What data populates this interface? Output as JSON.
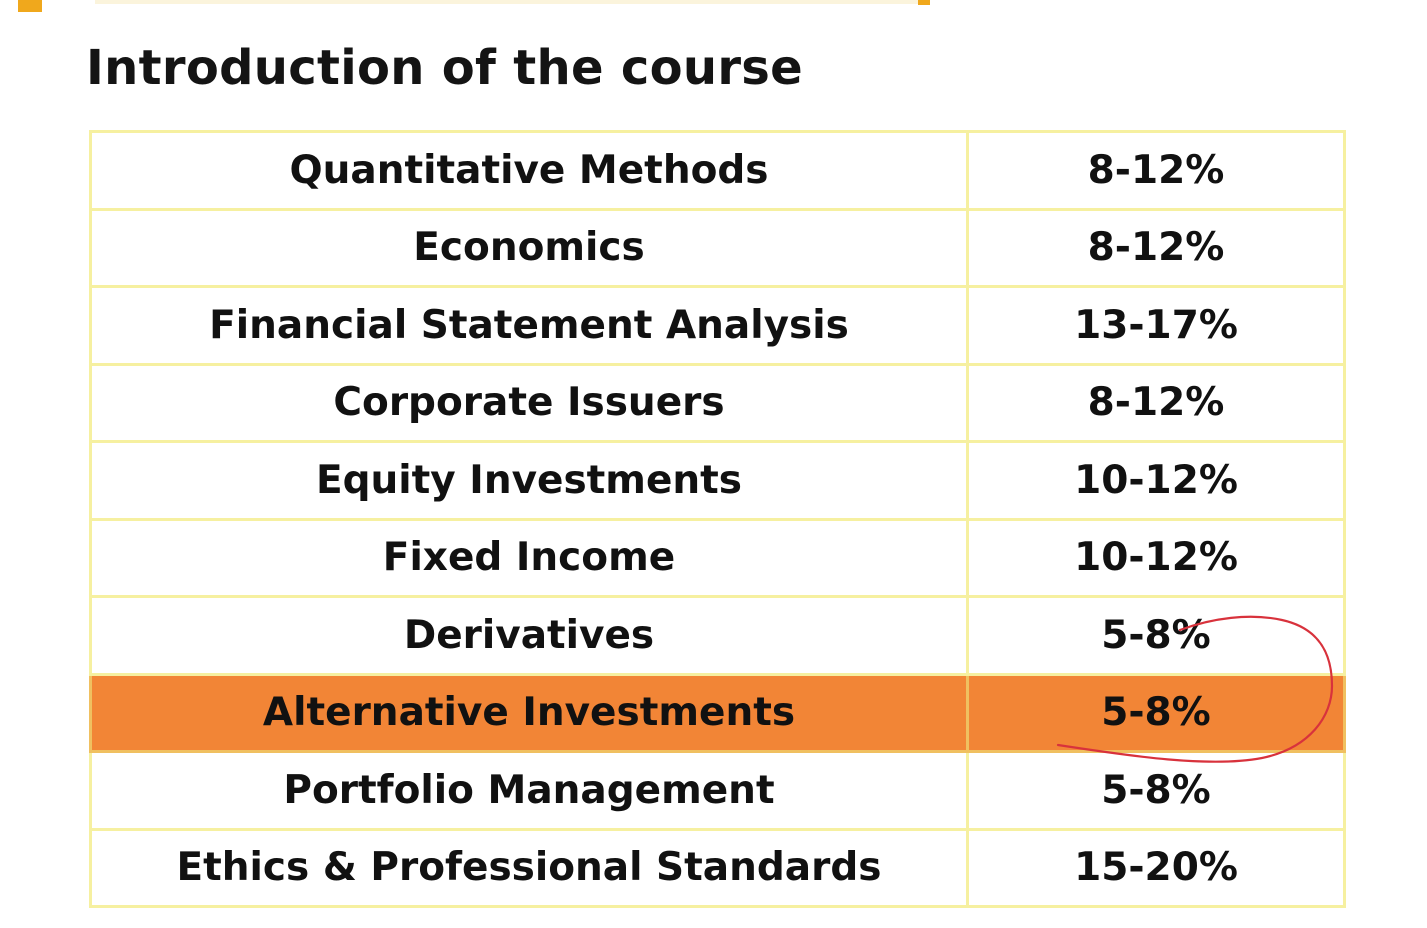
{
  "title": "Introduction of the course",
  "colors": {
    "accent": "#f0a81c",
    "highlight_row": "#f28536",
    "table_border": "#f6f0a0",
    "annotation_ink": "#d8323c"
  },
  "rows": [
    {
      "topic": "Quantitative Methods",
      "weight": "8-12%"
    },
    {
      "topic": "Economics",
      "weight": "8-12%"
    },
    {
      "topic": "Financial Statement Analysis",
      "weight": "13-17%"
    },
    {
      "topic": "Corporate Issuers",
      "weight": "8-12%"
    },
    {
      "topic": "Equity Investments",
      "weight": "10-12%"
    },
    {
      "topic": "Fixed Income",
      "weight": "10-12%"
    },
    {
      "topic": "Derivatives",
      "weight": "5-8%"
    },
    {
      "topic": "Alternative Investments",
      "weight": "5-8%",
      "highlighted": true
    },
    {
      "topic": "Portfolio Management",
      "weight": "5-8%"
    },
    {
      "topic": "Ethics & Professional Standards",
      "weight": "15-20%"
    }
  ]
}
